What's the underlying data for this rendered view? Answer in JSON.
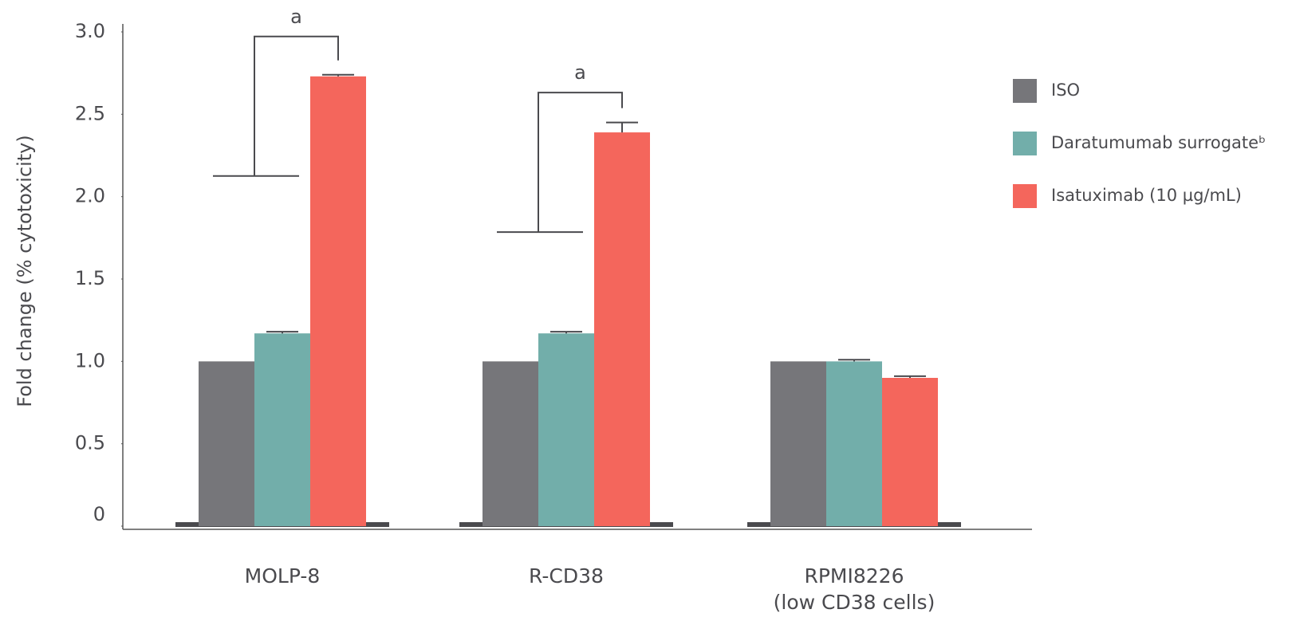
{
  "chart_data": {
    "type": "bar",
    "y_label": "Fold change (% cytotoxicity)",
    "categories": [
      "MOLP-8",
      "R-CD38",
      "RPMI8226\n(low CD38 cells)"
    ],
    "series": [
      {
        "name": "ISO",
        "color": "#76767a",
        "values": [
          1.0,
          1.0,
          1.0
        ],
        "errors": [
          0,
          0,
          0
        ]
      },
      {
        "name": "Daratumumab surrogateᵇ",
        "color": "#72aeaa",
        "values": [
          1.17,
          1.17,
          1.0
        ],
        "errors": [
          0.01,
          0.01,
          0.01
        ]
      },
      {
        "name": "Isatuximab (10 µg/mL)",
        "color": "#f4665c",
        "values": [
          2.73,
          2.39,
          0.9
        ],
        "errors": [
          0.01,
          0.06,
          0.01
        ]
      }
    ],
    "annotations": [
      "a",
      "a"
    ],
    "ylim": [
      0,
      3
    ],
    "yticks": [
      0,
      0.5,
      {
        "value": 1,
        "label": "1.0"
      },
      1.5,
      {
        "value": 2,
        "label": "2.0"
      },
      2.5,
      {
        "value": 3,
        "label": "3.0"
      }
    ],
    "legend": "right"
  }
}
